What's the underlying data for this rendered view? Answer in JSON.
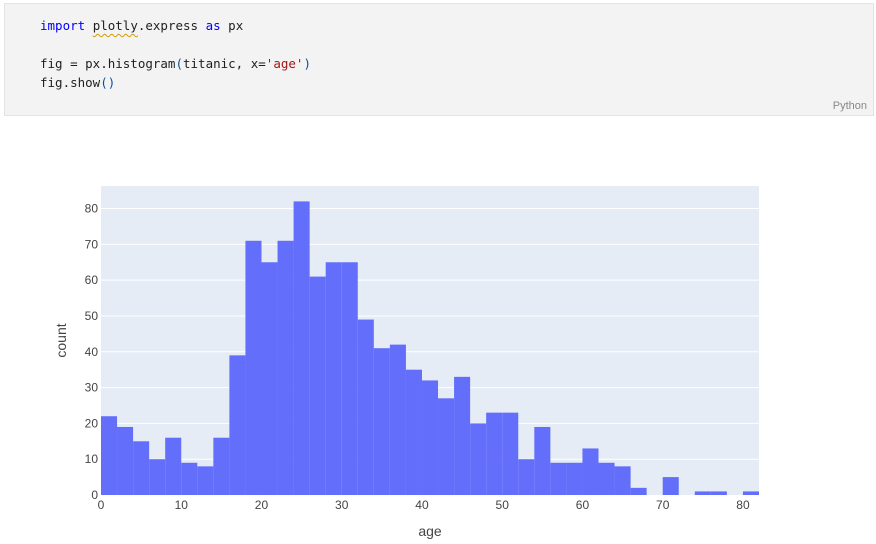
{
  "code_cell": {
    "lines": [
      {
        "parts": [
          {
            "text": "import",
            "style": "kw"
          },
          {
            "text": " ",
            "style": ""
          },
          {
            "text": "plotly",
            "style": "squiggle"
          },
          {
            "text": ".express ",
            "style": ""
          },
          {
            "text": "as",
            "style": "kw"
          },
          {
            "text": " px",
            "style": ""
          }
        ]
      },
      {
        "parts": []
      },
      {
        "parts": [
          {
            "text": "fig = px.histogram",
            "style": ""
          },
          {
            "text": "(",
            "style": "paren"
          },
          {
            "text": "titanic, x=",
            "style": ""
          },
          {
            "text": "'age'",
            "style": "str"
          },
          {
            "text": ")",
            "style": "paren"
          }
        ]
      },
      {
        "parts": [
          {
            "text": "fig.show",
            "style": ""
          },
          {
            "text": "()",
            "style": "paren"
          }
        ]
      }
    ],
    "language": "Python"
  },
  "chart_data": {
    "type": "bar",
    "xlabel": "age",
    "ylabel": "count",
    "xlim": [
      0,
      82
    ],
    "ylim": [
      0,
      86.3
    ],
    "bin_width": 2,
    "bin_start": 0,
    "x_ticks": [
      0,
      10,
      20,
      30,
      40,
      50,
      60,
      70,
      80
    ],
    "y_ticks": [
      0,
      10,
      20,
      30,
      40,
      50,
      60,
      70,
      80
    ],
    "values": [
      22,
      19,
      15,
      10,
      16,
      9,
      8,
      16,
      39,
      71,
      65,
      71,
      82,
      61,
      65,
      65,
      49,
      41,
      42,
      35,
      32,
      27,
      33,
      20,
      23,
      23,
      10,
      19,
      9,
      9,
      13,
      9,
      8,
      2,
      0,
      5,
      0,
      1,
      1,
      0,
      1
    ],
    "bar_color": "#636efa",
    "plot_bg": "#e5ecf6",
    "grid": true
  }
}
